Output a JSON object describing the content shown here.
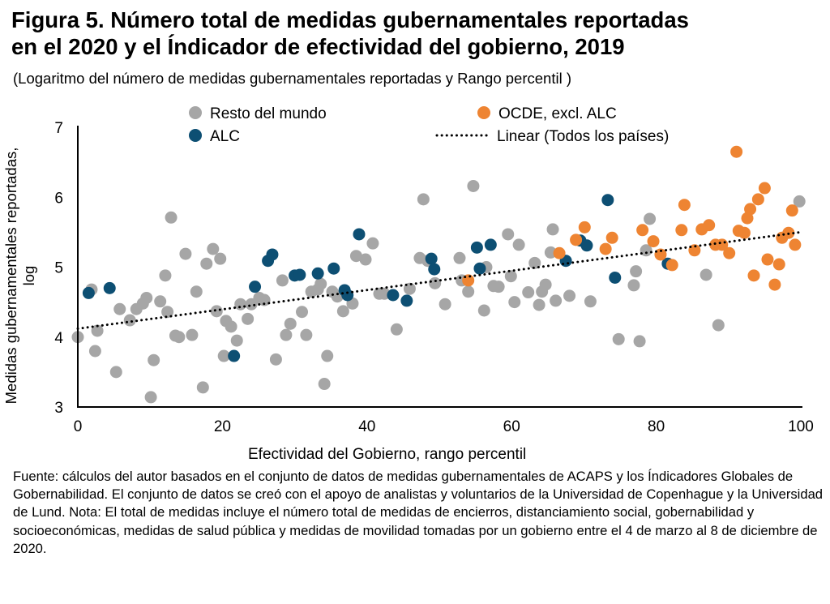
{
  "title_line1": "Figura 5. Número total de medidas gubernamentales reportadas",
  "title_line2": "en el 2020 y el Índicador de efectividad del gobierno, 2019",
  "subtitle": "(Logaritmo del número de medidas gubernamentales reportadas y Rango percentil )",
  "note": "Fuente: cálculos del autor basados en el conjunto de datos de medidas gubernamentales de ACAPS y los Índicadores Globales de Gobernabilidad. El conjunto de datos se creó con el apoyo de analistas y voluntarios de la Universidad de Copenhague y la Universidad de Lund. Nota: El total de medidas incluye el número total de medidas de encierros, distanciamiento social, gobernabilidad y socioeconómicas, medidas de salud pública y medidas de movilidad tomadas por un gobierno entre el 4 de marzo al 8 de diciembre de 2020.",
  "chart_data": {
    "type": "scatter",
    "title": "Figura 5. Número total de medidas gubernamentales reportadas en el 2020 y el Índicador de efectividad del gobierno, 2019",
    "xlabel": "Efectividad del Gobierno, rango percentil",
    "ylabel": "Medidas gubernamentales reportadas, log",
    "xlim": [
      0,
      100
    ],
    "ylim": [
      3,
      7
    ],
    "xticks": [
      "0",
      "20",
      "40",
      "60",
      "80",
      "100"
    ],
    "yticks": [
      "3",
      "4",
      "5",
      "6",
      "7"
    ],
    "legend_position": "top",
    "colors": {
      "resto": "#a6a6a6",
      "alc": "#0d4f73",
      "ocde": "#ee8432",
      "trend": "#000000"
    },
    "trendline": {
      "name": "Linear (Todos los países)",
      "intercept": 4.12,
      "slope": 0.0138
    },
    "series": [
      {
        "name": "Resto del mundo",
        "key": "resto",
        "points": [
          [
            0,
            4.0
          ],
          [
            1.9,
            4.68
          ],
          [
            2.7,
            4.09
          ],
          [
            2.4,
            3.8
          ],
          [
            5.3,
            3.5
          ],
          [
            5.8,
            4.4
          ],
          [
            7.2,
            4.24
          ],
          [
            8.1,
            4.4
          ],
          [
            9.0,
            4.48
          ],
          [
            9.5,
            4.56
          ],
          [
            10.1,
            3.14
          ],
          [
            10.5,
            3.67
          ],
          [
            11.4,
            4.51
          ],
          [
            12.1,
            4.88
          ],
          [
            12.4,
            4.36
          ],
          [
            12.9,
            5.71
          ],
          [
            13.5,
            4.02
          ],
          [
            14.0,
            4.0
          ],
          [
            14.9,
            5.19
          ],
          [
            15.8,
            4.03
          ],
          [
            16.4,
            4.65
          ],
          [
            17.3,
            3.28
          ],
          [
            17.8,
            5.05
          ],
          [
            18.7,
            5.26
          ],
          [
            19.2,
            4.37
          ],
          [
            19.7,
            5.12
          ],
          [
            20.2,
            3.73
          ],
          [
            20.5,
            4.23
          ],
          [
            21.2,
            4.15
          ],
          [
            22.0,
            3.95
          ],
          [
            22.5,
            4.47
          ],
          [
            23.5,
            4.26
          ],
          [
            24.0,
            4.47
          ],
          [
            25.1,
            4.56
          ],
          [
            25.8,
            4.53
          ],
          [
            27.4,
            3.68
          ],
          [
            28.3,
            4.81
          ],
          [
            28.8,
            4.03
          ],
          [
            29.4,
            4.19
          ],
          [
            31.0,
            4.36
          ],
          [
            31.6,
            4.03
          ],
          [
            32.3,
            4.65
          ],
          [
            33.2,
            4.68
          ],
          [
            33.6,
            4.76
          ],
          [
            34.1,
            3.33
          ],
          [
            34.5,
            3.73
          ],
          [
            35.2,
            4.65
          ],
          [
            35.9,
            4.58
          ],
          [
            36.7,
            4.37
          ],
          [
            38.0,
            4.48
          ],
          [
            38.5,
            5.16
          ],
          [
            39.8,
            5.11
          ],
          [
            40.8,
            5.34
          ],
          [
            41.7,
            4.62
          ],
          [
            42.4,
            4.62
          ],
          [
            44.1,
            4.11
          ],
          [
            45.9,
            4.69
          ],
          [
            47.3,
            5.13
          ],
          [
            47.8,
            5.97
          ],
          [
            48.4,
            5.09
          ],
          [
            49.4,
            4.77
          ],
          [
            50.8,
            4.47
          ],
          [
            52.8,
            5.13
          ],
          [
            53.1,
            4.81
          ],
          [
            54.0,
            4.65
          ],
          [
            54.7,
            6.16
          ],
          [
            56.5,
            5.0
          ],
          [
            56.2,
            4.38
          ],
          [
            57.5,
            4.73
          ],
          [
            58.2,
            4.72
          ],
          [
            59.5,
            5.47
          ],
          [
            59.9,
            4.87
          ],
          [
            60.4,
            4.5
          ],
          [
            61.0,
            5.32
          ],
          [
            62.3,
            4.64
          ],
          [
            63.2,
            5.06
          ],
          [
            63.8,
            4.46
          ],
          [
            64.2,
            4.65
          ],
          [
            64.7,
            4.75
          ],
          [
            65.4,
            5.21
          ],
          [
            65.7,
            5.54
          ],
          [
            66.1,
            4.52
          ],
          [
            68.0,
            4.59
          ],
          [
            70.9,
            4.51
          ],
          [
            74.8,
            3.97
          ],
          [
            76.9,
            4.74
          ],
          [
            77.2,
            4.94
          ],
          [
            77.7,
            3.94
          ],
          [
            78.6,
            5.24
          ],
          [
            79.1,
            5.69
          ],
          [
            86.9,
            4.89
          ],
          [
            88.6,
            4.17
          ],
          [
            99.8,
            5.94
          ]
        ]
      },
      {
        "name": "ALC",
        "key": "alc",
        "points": [
          [
            1.5,
            4.63
          ],
          [
            4.4,
            4.7
          ],
          [
            21.6,
            3.73
          ],
          [
            24.5,
            4.72
          ],
          [
            26.3,
            5.09
          ],
          [
            26.9,
            5.18
          ],
          [
            30.0,
            4.88
          ],
          [
            30.7,
            4.89
          ],
          [
            33.2,
            4.91
          ],
          [
            35.4,
            4.98
          ],
          [
            36.9,
            4.67
          ],
          [
            37.3,
            4.6
          ],
          [
            38.9,
            5.47
          ],
          [
            43.6,
            4.6
          ],
          [
            45.5,
            4.52
          ],
          [
            48.9,
            5.12
          ],
          [
            49.3,
            4.97
          ],
          [
            55.2,
            5.28
          ],
          [
            55.6,
            4.98
          ],
          [
            57.1,
            5.32
          ],
          [
            67.5,
            5.09
          ],
          [
            69.5,
            5.38
          ],
          [
            70.4,
            5.31
          ],
          [
            73.3,
            5.96
          ],
          [
            74.3,
            4.85
          ],
          [
            81.6,
            5.05
          ]
        ]
      },
      {
        "name": "OCDE, excl. ALC",
        "key": "ocde",
        "points": [
          [
            54.0,
            4.81
          ],
          [
            66.6,
            5.2
          ],
          [
            68.9,
            5.39
          ],
          [
            70.1,
            5.57
          ],
          [
            73.0,
            5.26
          ],
          [
            73.9,
            5.42
          ],
          [
            78.1,
            5.53
          ],
          [
            79.6,
            5.37
          ],
          [
            80.6,
            5.18
          ],
          [
            82.2,
            5.03
          ],
          [
            83.5,
            5.53
          ],
          [
            83.9,
            5.89
          ],
          [
            85.3,
            5.24
          ],
          [
            86.3,
            5.54
          ],
          [
            87.3,
            5.6
          ],
          [
            88.2,
            5.32
          ],
          [
            89.1,
            5.32
          ],
          [
            90.1,
            5.2
          ],
          [
            91.1,
            6.65
          ],
          [
            91.4,
            5.52
          ],
          [
            92.2,
            5.49
          ],
          [
            92.6,
            5.7
          ],
          [
            93.0,
            5.83
          ],
          [
            93.5,
            4.88
          ],
          [
            94.1,
            5.97
          ],
          [
            95.0,
            6.13
          ],
          [
            95.4,
            5.11
          ],
          [
            96.4,
            4.75
          ],
          [
            97.0,
            5.04
          ],
          [
            97.4,
            5.42
          ],
          [
            98.3,
            5.49
          ],
          [
            98.8,
            5.81
          ],
          [
            99.2,
            5.32
          ]
        ]
      }
    ]
  }
}
